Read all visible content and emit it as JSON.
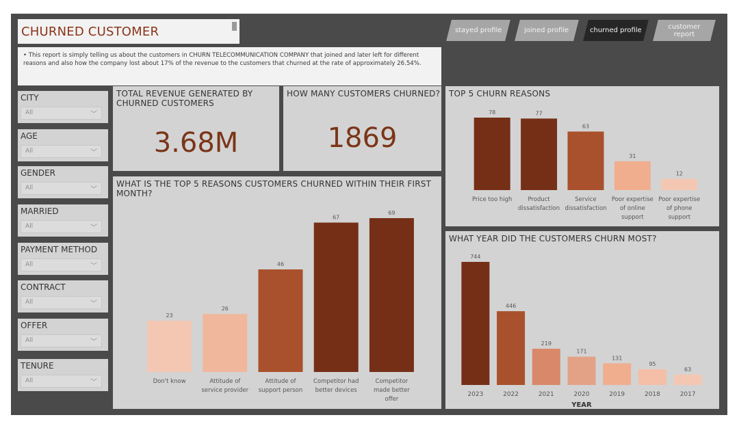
{
  "title": "CHURNED CUSTOMER",
  "description": "• This report is simply telling us about the customers in CHURN TELECOMMUNICATION COMPANY that joined and later left for different reasons and also how the company lost about 17% of the revenue to the customers that churned at the rate of approximately 26.54%.",
  "nav": [
    {
      "label": "stayed profile"
    },
    {
      "label": "joined profile"
    },
    {
      "label": "churned profile"
    },
    {
      "label": "customer report"
    }
  ],
  "colors": {
    "accent": "#7b3518",
    "dark": "#762f17",
    "mid": "#a9512c",
    "mid2": "#d9896a",
    "light": "#f0ae8f",
    "lighter": "#f4c7b3"
  },
  "slicers": [
    {
      "label": "CITY",
      "value": "All"
    },
    {
      "label": "AGE",
      "value": "All"
    },
    {
      "label": "GENDER",
      "value": "All"
    },
    {
      "label": "MARRIED",
      "value": "All"
    },
    {
      "label": "PAYMENT METHOD",
      "value": "All"
    },
    {
      "label": "CONTRACT",
      "value": "All"
    },
    {
      "label": "OFFER",
      "value": "All"
    },
    {
      "label": "TENURE",
      "value": "All"
    }
  ],
  "kpis": {
    "revenue": {
      "title": "TOTAL REVENUE GENERATED BY CHURNED CUSTOMERS",
      "value": "3.68M"
    },
    "churned": {
      "title": "HOW MANY CUSTOMERS CHURNED?",
      "value": "1869"
    }
  },
  "chart_data": [
    {
      "id": "top5",
      "type": "bar",
      "title": "TOP 5 CHURN REASONS",
      "categories": [
        [
          "Price too high"
        ],
        [
          "Product",
          "dissatisfaction"
        ],
        [
          "Service",
          "dissatisfaction"
        ],
        [
          "Poor expertise",
          "of online",
          "support"
        ],
        [
          "Poor expertise",
          "of phone",
          "support"
        ]
      ],
      "values": [
        78,
        77,
        63,
        31,
        12
      ],
      "colors": [
        "#762f17",
        "#762f17",
        "#a9512c",
        "#f0ae8f",
        "#f4c7b3"
      ],
      "ylim": [
        0,
        78
      ]
    },
    {
      "id": "firstmonth",
      "type": "bar",
      "title": "WHAT IS THE TOP 5 REASONS CUSTOMERS CHURNED WITHIN THEIR FIRST MONTH?",
      "categories": [
        [
          "Don't know"
        ],
        [
          "Attitude of",
          "service provider"
        ],
        [
          "Attitude of",
          "support person"
        ],
        [
          "Competitor had",
          "better devices"
        ],
        [
          "Competitor",
          "made better",
          "offer"
        ]
      ],
      "values": [
        23,
        26,
        46,
        67,
        69
      ],
      "colors": [
        "#f4c7b3",
        "#f0b79d",
        "#a9512c",
        "#762f17",
        "#762f17"
      ],
      "ylim": [
        0,
        69
      ]
    },
    {
      "id": "year",
      "type": "bar",
      "title": "WHAT YEAR DID THE CUSTOMERS CHURN MOST?",
      "xlabel": "YEAR",
      "categories": [
        [
          "2023"
        ],
        [
          "2022"
        ],
        [
          "2021"
        ],
        [
          "2020"
        ],
        [
          "2019"
        ],
        [
          "2018"
        ],
        [
          "2017"
        ]
      ],
      "values": [
        744,
        446,
        219,
        171,
        131,
        95,
        63
      ],
      "colors": [
        "#762f17",
        "#a9512c",
        "#d9896a",
        "#e3a286",
        "#f0ae8f",
        "#f4bfa6",
        "#f4c7b3"
      ],
      "ylim": [
        0,
        744
      ]
    }
  ]
}
